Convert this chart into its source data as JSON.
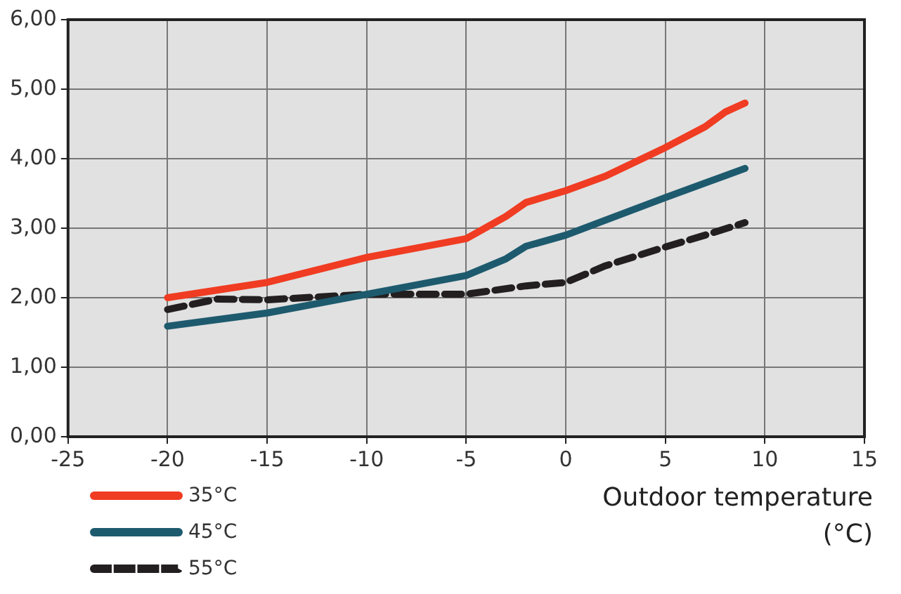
{
  "chart_data": {
    "type": "line",
    "xlabel": "Outdoor temperature (°C)",
    "xlim": [
      -25,
      15
    ],
    "xticks": [
      -25,
      -20,
      -15,
      -10,
      -5,
      0,
      5,
      10,
      15
    ],
    "ylim": [
      0,
      6
    ],
    "yticks": [
      {
        "value": 0,
        "label": "0,00"
      },
      {
        "value": 1,
        "label": "1,00"
      },
      {
        "value": 2,
        "label": "2,00"
      },
      {
        "value": 3,
        "label": "3,00"
      },
      {
        "value": 4,
        "label": "4,00"
      },
      {
        "value": 5,
        "label": "5,00"
      },
      {
        "value": 6,
        "label": "6,00"
      }
    ],
    "grid": true,
    "legend": "bottom left",
    "marker": "none",
    "series": [
      {
        "name": "35°C",
        "color": "#f03c22",
        "line_style": "solid",
        "x": [
          -20,
          -15,
          -10,
          -5,
          -3,
          -2,
          0,
          2,
          5,
          7,
          8,
          9
        ],
        "values": [
          2.0,
          2.22,
          2.58,
          2.85,
          3.17,
          3.37,
          3.54,
          3.75,
          4.16,
          4.46,
          4.67,
          4.8
        ]
      },
      {
        "name": "45°C",
        "color": "#1d5a6e",
        "line_style": "solid",
        "x": [
          -20,
          -15,
          -10,
          -5,
          -3,
          -2,
          0,
          5,
          9
        ],
        "values": [
          1.59,
          1.78,
          2.05,
          2.32,
          2.56,
          2.74,
          2.9,
          3.44,
          3.86
        ]
      },
      {
        "name": "55°C",
        "color": "#231f20",
        "line_style": "dashed",
        "x": [
          -20,
          -17.5,
          -15,
          -10,
          -5,
          -2,
          0,
          2,
          5,
          7,
          9
        ],
        "values": [
          1.83,
          1.98,
          1.97,
          2.05,
          2.05,
          2.17,
          2.22,
          2.46,
          2.73,
          2.9,
          3.08
        ]
      }
    ]
  }
}
